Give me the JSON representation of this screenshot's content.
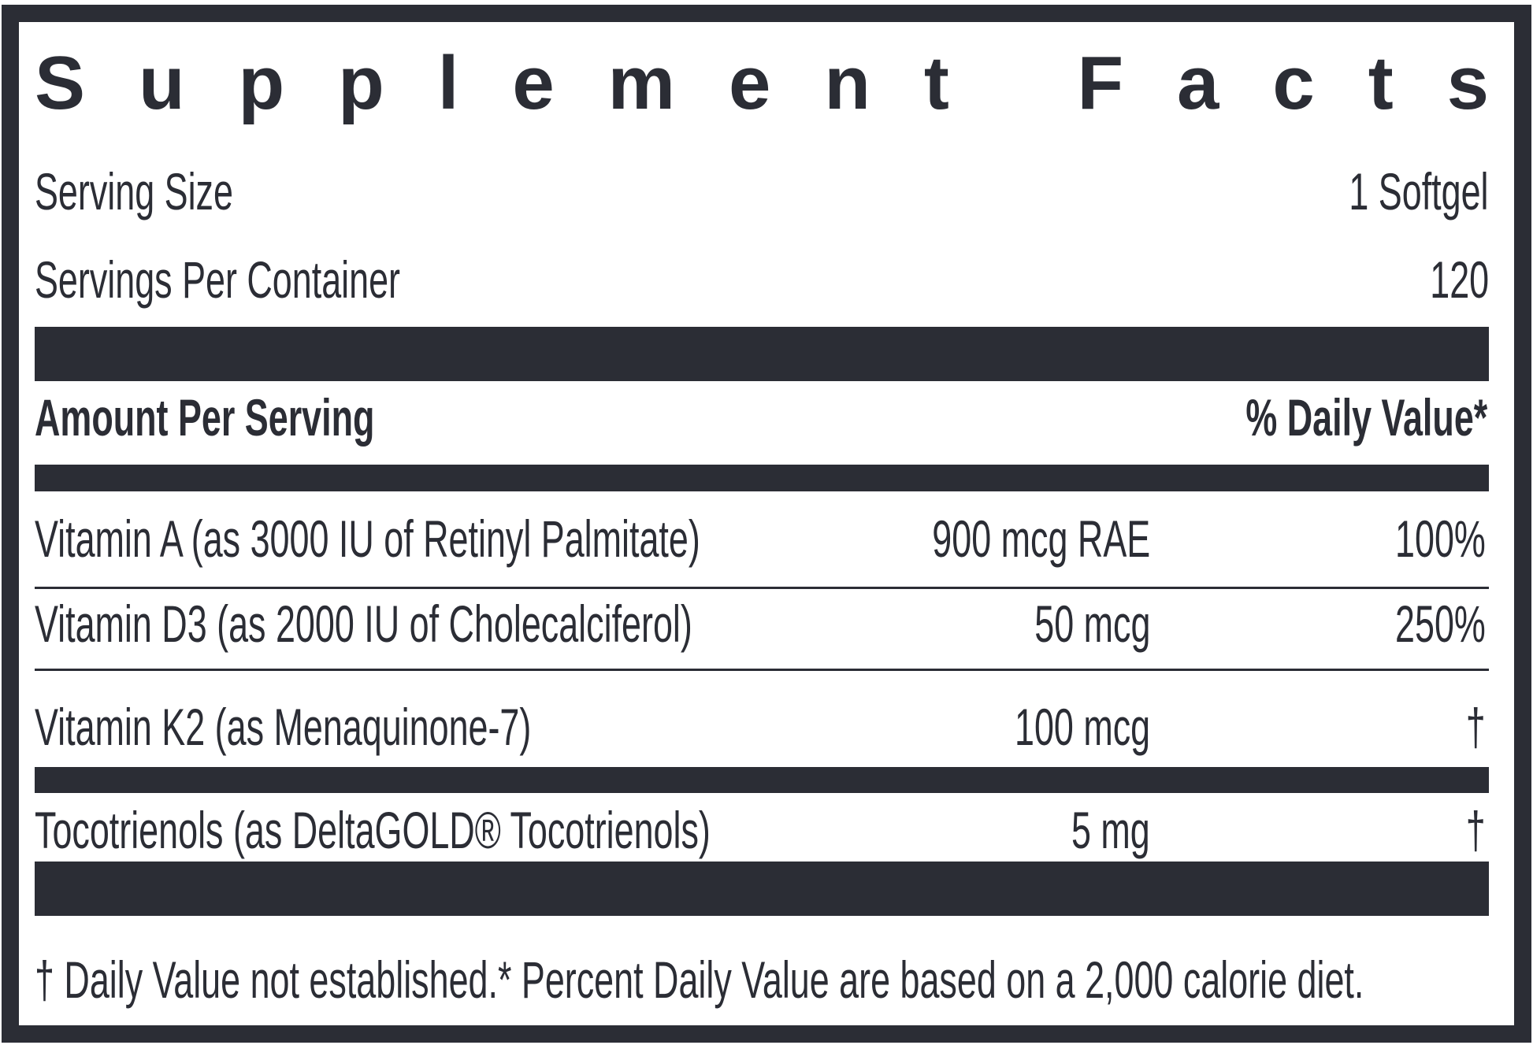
{
  "title": "Supplement Facts",
  "serving_size": {
    "label": "Serving Size",
    "value": "1 Softgel"
  },
  "servings_per_container": {
    "label": "Servings Per Container",
    "value": "120"
  },
  "header": {
    "amount": "Amount Per Serving",
    "daily_value": "% Daily Value*"
  },
  "rows": [
    {
      "name": "Vitamin A (as 3000 IU of Retinyl Palmitate)",
      "amount": "900 mcg RAE",
      "dv": "100%"
    },
    {
      "name": "Vitamin D3 (as 2000 IU of Cholecalciferol)",
      "amount": "50 mcg",
      "dv": "250%"
    },
    {
      "name": "Vitamin K2 (as Menaquinone-7)",
      "amount": "100 mcg",
      "dv": "†"
    },
    {
      "name": "Tocotrienols (as DeltaGOLD® Tocotrienols)",
      "amount": "5 mg",
      "dv": "†"
    }
  ],
  "footnote": "† Daily Value not established.* Percent Daily Value are based on a 2,000 calorie diet."
}
